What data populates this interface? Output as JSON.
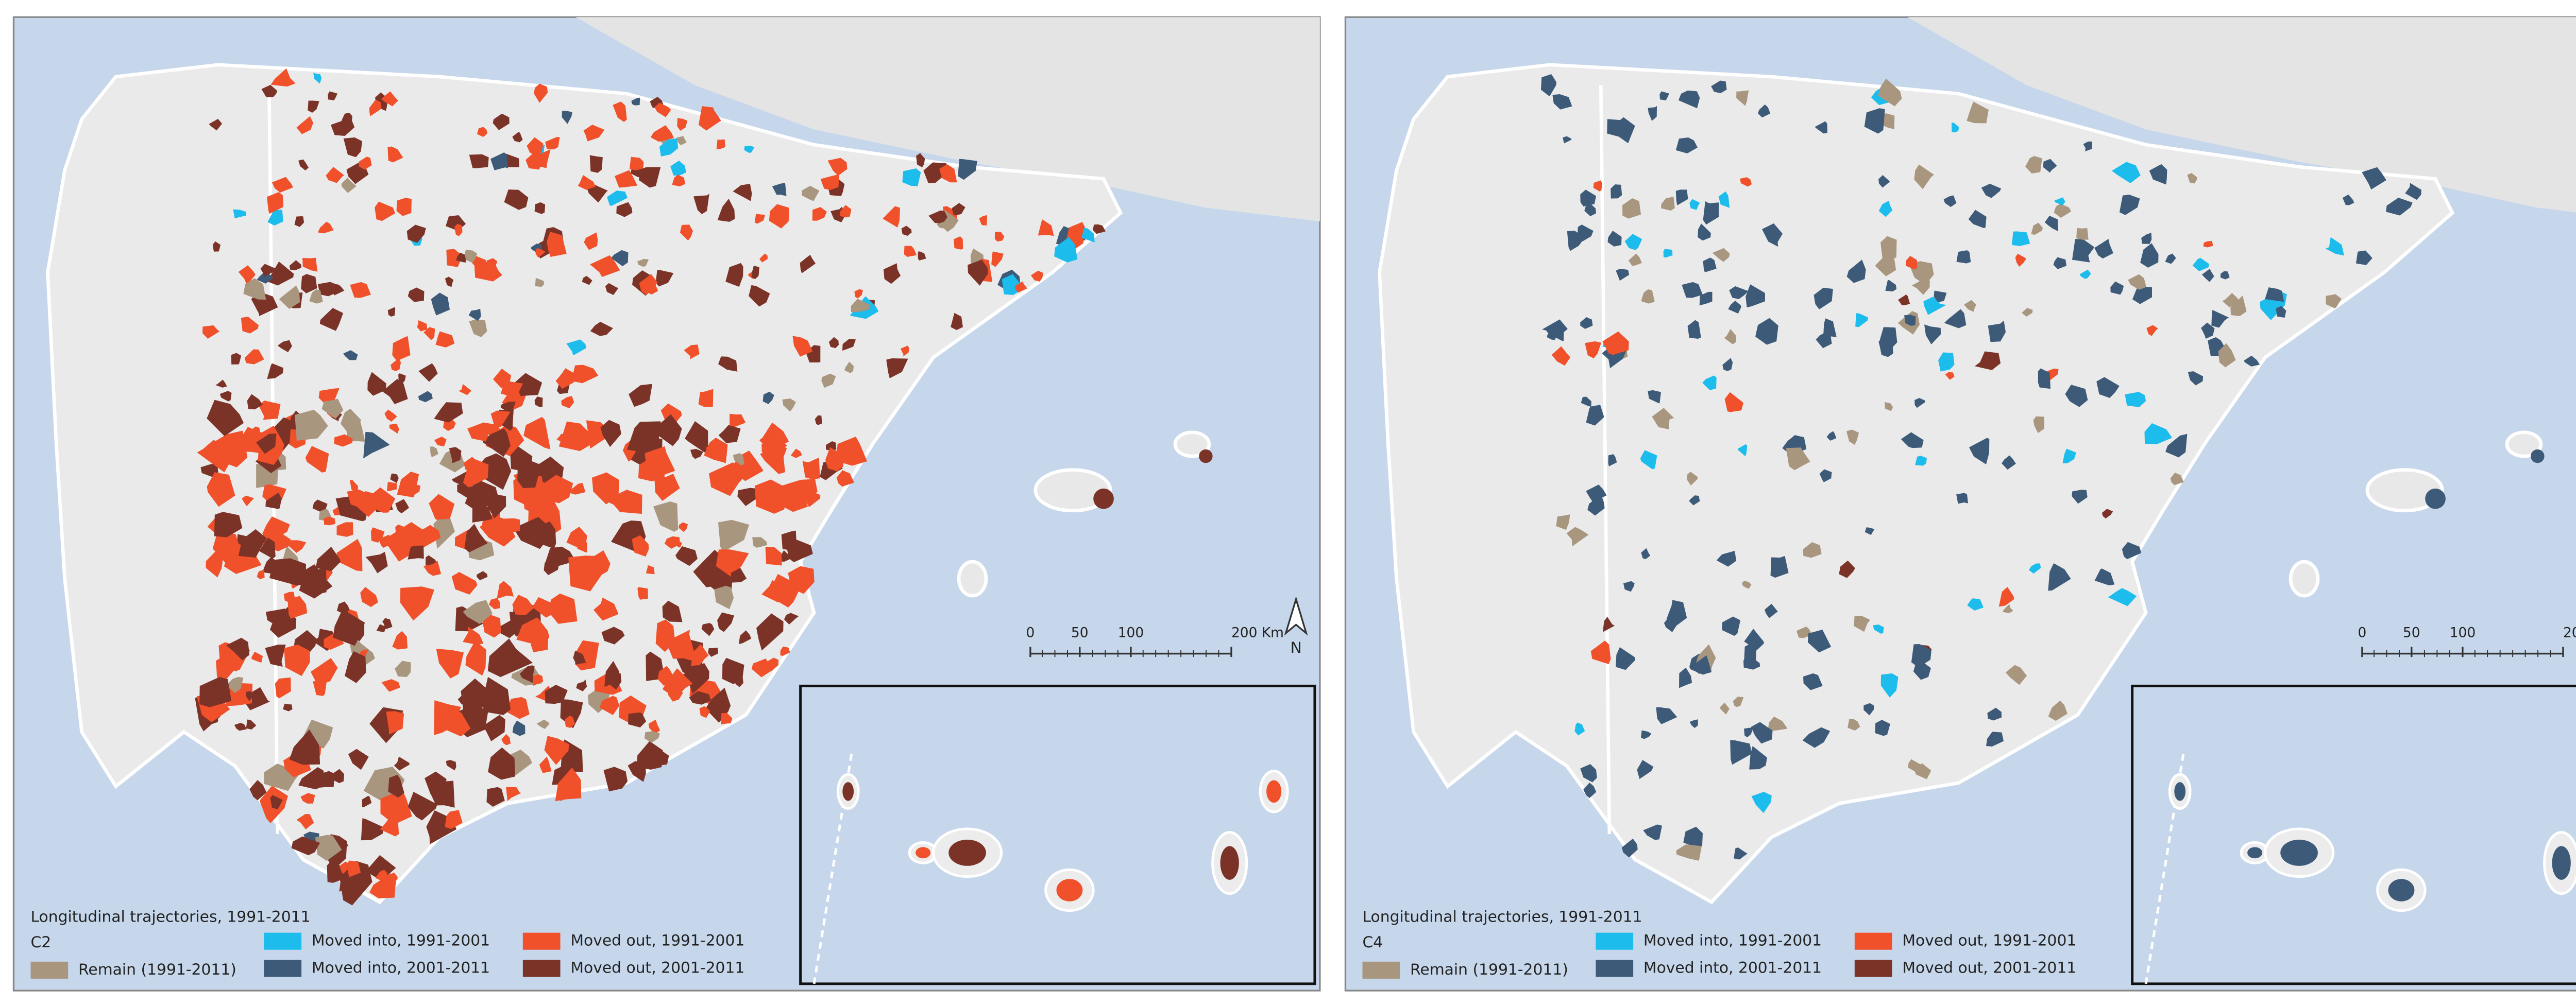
{
  "maps": [
    {
      "panel_label": "C2"
    },
    {
      "panel_label": "C4"
    }
  ],
  "legend": {
    "title": "Longitudinal trajectories, 1991-2011",
    "items": [
      {
        "label": "Remain (1991-2011)",
        "color": "#a8967e"
      },
      {
        "label": "Moved into, 1991-2001",
        "color": "#1cbcec"
      },
      {
        "label": "Moved into, 2001-2011",
        "color": "#3d5a78"
      },
      {
        "label": "Moved out, 1991-2001",
        "color": "#f0502a"
      },
      {
        "label": "Moved out, 2001-2011",
        "color": "#7b3328"
      }
    ]
  },
  "scale_bar": {
    "labels": [
      "0",
      "50",
      "100",
      "200 Km"
    ]
  },
  "north_label": "N"
}
